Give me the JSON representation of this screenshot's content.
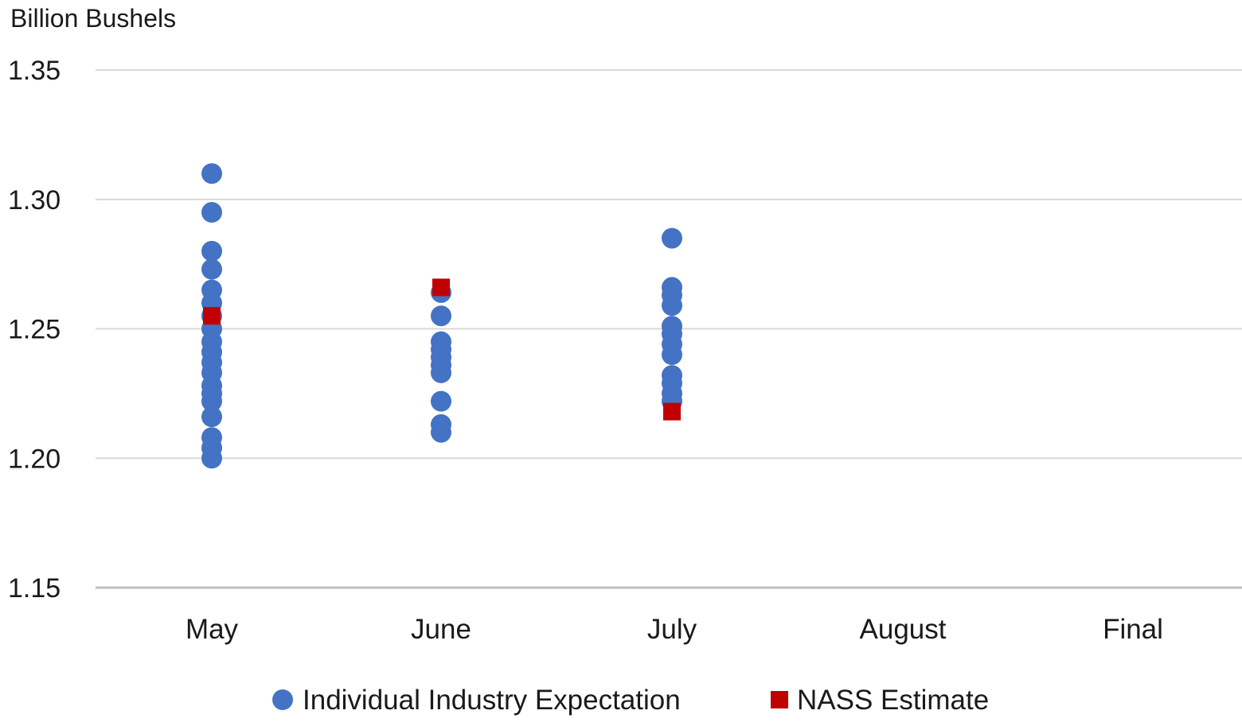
{
  "chart_data": {
    "type": "scatter",
    "ylabel": "Billion Bushels",
    "ylim": [
      1.15,
      1.35
    ],
    "yticks": [
      "1.35",
      "1.30",
      "1.25",
      "1.20",
      "1.15"
    ],
    "categories": [
      "May",
      "June",
      "July",
      "August",
      "Final"
    ],
    "grid": true,
    "legend_position": "bottom",
    "series": [
      {
        "name": "Individual Industry Expectation",
        "marker": "circle",
        "color": "#4472c4",
        "points": [
          {
            "x": "May",
            "y": 1.31
          },
          {
            "x": "May",
            "y": 1.295
          },
          {
            "x": "May",
            "y": 1.28
          },
          {
            "x": "May",
            "y": 1.273
          },
          {
            "x": "May",
            "y": 1.265
          },
          {
            "x": "May",
            "y": 1.26
          },
          {
            "x": "May",
            "y": 1.255
          },
          {
            "x": "May",
            "y": 1.25
          },
          {
            "x": "May",
            "y": 1.245
          },
          {
            "x": "May",
            "y": 1.241
          },
          {
            "x": "May",
            "y": 1.237
          },
          {
            "x": "May",
            "y": 1.233
          },
          {
            "x": "May",
            "y": 1.228
          },
          {
            "x": "May",
            "y": 1.225
          },
          {
            "x": "May",
            "y": 1.222
          },
          {
            "x": "May",
            "y": 1.216
          },
          {
            "x": "May",
            "y": 1.208
          },
          {
            "x": "May",
            "y": 1.204
          },
          {
            "x": "May",
            "y": 1.2
          },
          {
            "x": "June",
            "y": 1.264
          },
          {
            "x": "June",
            "y": 1.255
          },
          {
            "x": "June",
            "y": 1.245
          },
          {
            "x": "June",
            "y": 1.242
          },
          {
            "x": "June",
            "y": 1.239
          },
          {
            "x": "June",
            "y": 1.236
          },
          {
            "x": "June",
            "y": 1.233
          },
          {
            "x": "June",
            "y": 1.222
          },
          {
            "x": "June",
            "y": 1.213
          },
          {
            "x": "June",
            "y": 1.21
          },
          {
            "x": "July",
            "y": 1.285
          },
          {
            "x": "July",
            "y": 1.266
          },
          {
            "x": "July",
            "y": 1.263
          },
          {
            "x": "July",
            "y": 1.259
          },
          {
            "x": "July",
            "y": 1.251
          },
          {
            "x": "July",
            "y": 1.248
          },
          {
            "x": "July",
            "y": 1.244
          },
          {
            "x": "July",
            "y": 1.24
          },
          {
            "x": "July",
            "y": 1.232
          },
          {
            "x": "July",
            "y": 1.229
          },
          {
            "x": "July",
            "y": 1.225
          },
          {
            "x": "July",
            "y": 1.222
          }
        ]
      },
      {
        "name": "NASS Estimate",
        "marker": "square",
        "color": "#c00000",
        "points": [
          {
            "x": "May",
            "y": 1.255
          },
          {
            "x": "June",
            "y": 1.266
          },
          {
            "x": "July",
            "y": 1.218
          }
        ]
      }
    ]
  }
}
